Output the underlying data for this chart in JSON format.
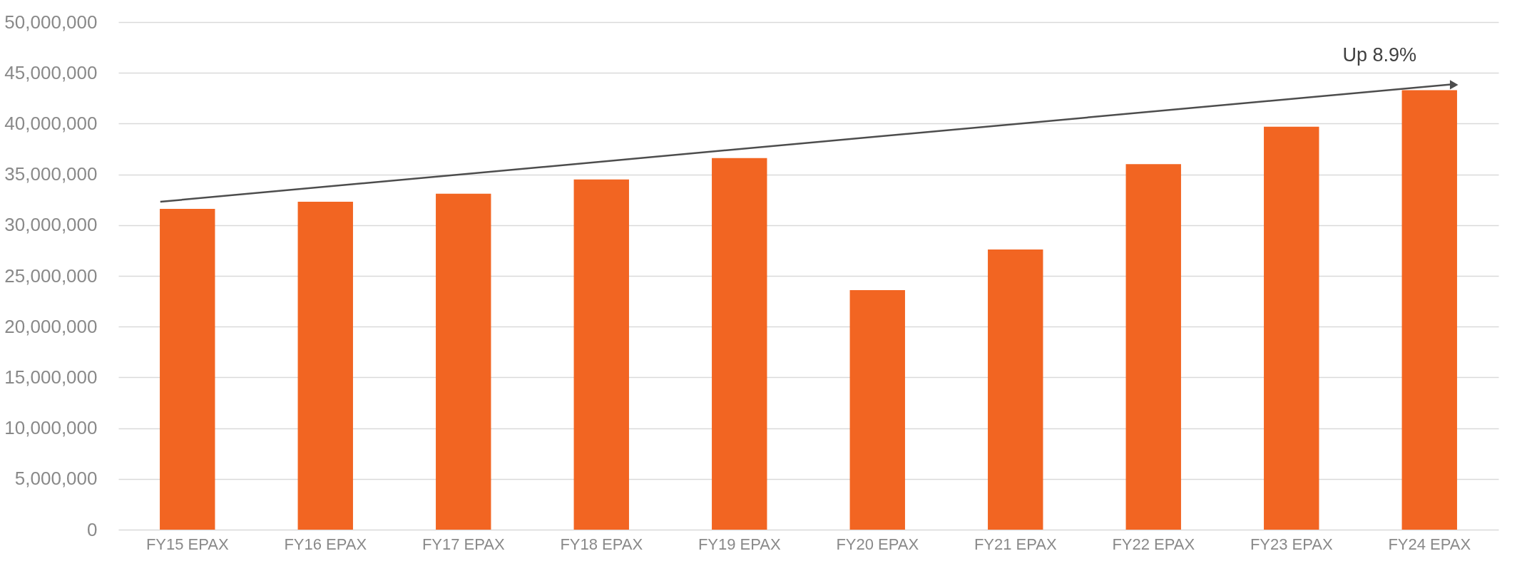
{
  "chart_data": {
    "type": "bar",
    "categories": [
      "FY15 EPAX",
      "FY16 EPAX",
      "FY17 EPAX",
      "FY18 EPAX",
      "FY19 EPAX",
      "FY20 EPAX",
      "FY21 EPAX",
      "FY22 EPAX",
      "FY23 EPAX",
      "FY24 EPAX"
    ],
    "values": [
      31600000,
      32300000,
      33100000,
      34500000,
      36600000,
      23600000,
      27600000,
      36000000,
      39700000,
      43300000
    ],
    "color": "#f26522",
    "ylim": [
      0,
      50000000
    ],
    "yticks": [
      0,
      {
        "value": 5000000,
        "label": "5,000,000"
      },
      {
        "value": 10000000,
        "label": "10,000,000"
      },
      {
        "value": 15000000,
        "label": "15,000,000"
      },
      {
        "value": 20000000,
        "label": "20,000,000"
      },
      {
        "value": 25000000,
        "label": "25,000,000"
      },
      {
        "value": 30000000,
        "label": "30,000,000"
      },
      {
        "value": 35000000,
        "label": "35,000,000"
      },
      {
        "value": 40000000,
        "label": "40,000,000"
      },
      {
        "value": 45000000,
        "label": "45,000,000"
      },
      {
        "value": 50000000,
        "label": "50,000,000"
      }
    ],
    "grid": "y",
    "annotations": [
      "Up 8.9%"
    ]
  }
}
